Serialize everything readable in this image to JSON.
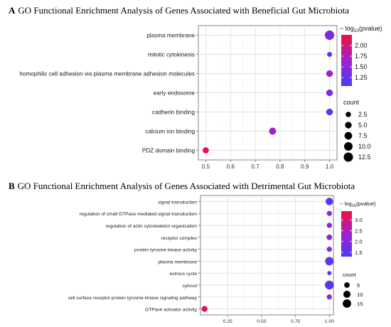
{
  "chart_data": [
    {
      "panel_label": "A",
      "title": "GO Functional Enrichment Analysis of Genes Associated with Beneficial Gut Microbiota",
      "type": "scatter",
      "xlim": [
        0.47,
        1.03
      ],
      "x_ticks": [
        "0.5",
        "0.6",
        "0.7",
        "0.8",
        "0.9",
        "1.0"
      ],
      "x_tick_values": [
        0.5,
        0.6,
        0.7,
        0.8,
        0.9,
        1.0
      ],
      "categories": [
        "plasma membrane",
        "mitotic cytokinesis",
        "homophilic cell adhesion via plasma membrane adhesion molecules",
        "early endosome",
        "cadherin binding",
        "calcium ion binding",
        "PDZ domain binding"
      ],
      "points": [
        {
          "term": "plasma membrane",
          "x": 1.0,
          "count": 13,
          "log10p": 1.4
        },
        {
          "term": "mitotic cytokinesis",
          "x": 1.0,
          "count": 2,
          "log10p": 1.12
        },
        {
          "term": "homophilic cell adhesion via plasma membrane adhesion molecules",
          "x": 1.0,
          "count": 5,
          "log10p": 1.62
        },
        {
          "term": "early endosome",
          "x": 1.0,
          "count": 5,
          "log10p": 1.38
        },
        {
          "term": "cadherin binding",
          "x": 1.0,
          "count": 5,
          "log10p": 1.18
        },
        {
          "term": "calcium ion binding",
          "x": 0.77,
          "count": 6,
          "log10p": 1.65
        },
        {
          "term": "PDZ domain binding",
          "x": 0.5,
          "count": 4,
          "log10p": 2.2
        }
      ],
      "color_legend": {
        "title": "− log10(pvalue)",
        "ticks": [
          "2.00",
          "1.75",
          "1.50",
          "1.25"
        ],
        "tick_values": [
          2.0,
          1.75,
          1.5,
          1.25
        ],
        "range": [
          1.05,
          2.25
        ]
      },
      "size_legend": {
        "title": "count",
        "labels": [
          "2.5",
          "5.0",
          "7.5",
          "10.0",
          "12.5"
        ],
        "values": [
          2.5,
          5.0,
          7.5,
          10.0,
          12.5
        ]
      },
      "grid": true
    },
    {
      "panel_label": "B",
      "title": "GO Functional Enrichment Analysis of Genes Associated with Detrimental Gut Microbiota",
      "type": "scatter",
      "xlim": [
        0.05,
        1.03
      ],
      "x_ticks": [
        "0.25",
        "0.50",
        "0.75",
        "1.00"
      ],
      "x_tick_values": [
        0.25,
        0.5,
        0.75,
        1.0
      ],
      "categories": [
        "signal transduction",
        "regulation of small GTPase mediated signal transduction",
        "regulation of actin cytoskeleton organization",
        "receptor complex",
        "protein tyrosine kinase activity",
        "plasma membrane",
        "estrous cycle",
        "cytosol",
        "cell surface receptor protein tyrosine kinase signaling pathway",
        "GTPase activator activity"
      ],
      "points": [
        {
          "term": "signal transduction",
          "x": 1.0,
          "count": 11,
          "log10p": 1.5
        },
        {
          "term": "regulation of small GTPase mediated signal transduction",
          "x": 1.0,
          "count": 4,
          "log10p": 2.1
        },
        {
          "term": "regulation of actin cytoskeleton organization",
          "x": 1.0,
          "count": 4,
          "log10p": 2.0
        },
        {
          "term": "receptor complex",
          "x": 1.0,
          "count": 5,
          "log10p": 2.0
        },
        {
          "term": "protein tyrosine kinase activity",
          "x": 1.0,
          "count": 4,
          "log10p": 2.0
        },
        {
          "term": "plasma membrane",
          "x": 1.0,
          "count": 15,
          "log10p": 1.6
        },
        {
          "term": "estrous cycle",
          "x": 1.0,
          "count": 2,
          "log10p": 1.5
        },
        {
          "term": "cytosol",
          "x": 1.0,
          "count": 17,
          "log10p": 1.5
        },
        {
          "term": "cell surface receptor protein tyrosine kinase signaling pathway",
          "x": 1.0,
          "count": 4,
          "log10p": 2.0
        },
        {
          "term": "GTPase activator activity",
          "x": 0.08,
          "count": 6,
          "log10p": 3.3
        }
      ],
      "color_legend": {
        "title": "− log10(pvalue)",
        "ticks": [
          "3.0",
          "2.5",
          "2.0",
          "1.5"
        ],
        "tick_values": [
          3.0,
          2.5,
          2.0,
          1.5
        ],
        "range": [
          1.3,
          3.4
        ]
      },
      "size_legend": {
        "title": "count",
        "labels": [
          "5",
          "10",
          "15"
        ],
        "values": [
          5,
          10,
          15
        ]
      },
      "grid": true
    }
  ]
}
